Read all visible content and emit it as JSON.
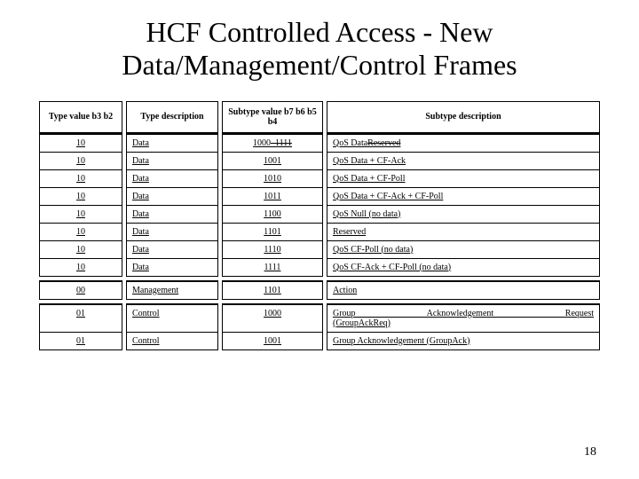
{
  "title": "HCF Controlled Access - New Data/Management/Control Frames",
  "page_number": "18",
  "columns": [
    "Type value b3 b2",
    "Type description",
    "Subtype value b7 b6 b5 b4",
    "Subtype description"
  ],
  "groups": [
    {
      "rows": [
        {
          "type_val": "10",
          "type_desc": "Data",
          "sub_val_html": "1000<span class='strike'>–1111</span>",
          "sub_desc_html": "<u>QoS Data</u><span class='strike'>Reserved</span>"
        },
        {
          "type_val": "10",
          "type_desc": "Data",
          "sub_val": "1001",
          "sub_desc": "QoS Data + CF-Ack"
        },
        {
          "type_val": "10",
          "type_desc": "Data",
          "sub_val": "1010",
          "sub_desc": "QoS Data + CF-Poll"
        },
        {
          "type_val": "10",
          "type_desc": "Data",
          "sub_val": "1011",
          "sub_desc": "QoS Data + CF-Ack + CF-Poll"
        },
        {
          "type_val": "10",
          "type_desc": "Data",
          "sub_val": "1100",
          "sub_desc": "QoS Null (no data)"
        },
        {
          "type_val": "10",
          "type_desc": "Data",
          "sub_val": "1101",
          "sub_desc": "Reserved"
        },
        {
          "type_val": "10",
          "type_desc": "Data",
          "sub_val": "1110",
          "sub_desc": "QoS CF-Poll (no data)"
        },
        {
          "type_val": "10",
          "type_desc": "Data",
          "sub_val": "1111",
          "sub_desc": "QoS CF-Ack + CF-Poll (no data)"
        }
      ]
    },
    {
      "rows": [
        {
          "type_val": "00",
          "type_desc": "Management",
          "sub_val": "1101",
          "sub_desc": "Action"
        }
      ]
    },
    {
      "rows": [
        {
          "type_val": "01",
          "type_desc": "Control",
          "sub_val": "1000",
          "sub_desc_html": "<span class='justify' style='display:block'>Group Acknowledgement Request</span>(GroupAckReq)"
        },
        {
          "type_val": "01",
          "type_desc": "Control",
          "sub_val": "1001",
          "sub_desc": "Group Acknowledgement (GroupAck)"
        }
      ]
    }
  ]
}
